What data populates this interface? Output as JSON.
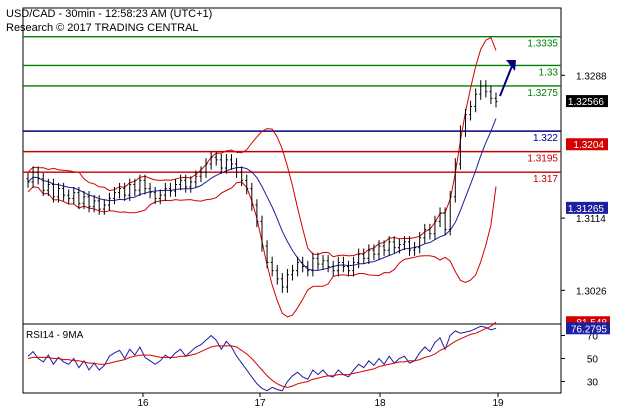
{
  "header": {
    "line1": "USD/CAD - 30min - 12:58:23 AM (UTC+1)",
    "line2": "Research © 2017 TRADING CENTRAL"
  },
  "chart_data": [
    {
      "type": "candlestick",
      "symbol": "USD/CAD",
      "timeframe": "30min",
      "x_labels": [
        "16",
        "17",
        "18",
        "19"
      ],
      "y_ticks": [
        1.3288,
        1.3114,
        1.3026
      ],
      "ylim": [
        1.2985,
        1.337
      ],
      "current_price": "1.32566",
      "levels": [
        {
          "label": "1.3335",
          "value": 1.3335,
          "color": "#008000"
        },
        {
          "label": "1.33",
          "value": 1.33,
          "color": "#008000"
        },
        {
          "label": "1.3275",
          "value": 1.3275,
          "color": "#008000"
        },
        {
          "label": "1.322",
          "value": 1.322,
          "color": "#000080"
        },
        {
          "label": "1.3195",
          "value": 1.3195,
          "color": "#c00000"
        },
        {
          "label": "1.317",
          "value": 1.317,
          "color": "#c00000"
        }
      ],
      "price_badges": [
        {
          "label": "1.32566",
          "value": 1.32566,
          "color": "#000000"
        },
        {
          "label": "1.3204",
          "value": 1.3204,
          "color": "#d40000"
        },
        {
          "label": "1.31265",
          "value": 1.31265,
          "color": "#1e1ea0"
        }
      ],
      "close_series": [
        1.3158,
        1.317,
        1.3162,
        1.3148,
        1.3155,
        1.314,
        1.315,
        1.3142,
        1.3138,
        1.3145,
        1.3132,
        1.314,
        1.3128,
        1.3135,
        1.3125,
        1.313,
        1.3138,
        1.3145,
        1.315,
        1.3142,
        1.3155,
        1.3148,
        1.316,
        1.315,
        1.3145,
        1.3138,
        1.3142,
        1.315,
        1.3147,
        1.3155,
        1.316,
        1.3152,
        1.3158,
        1.3165,
        1.317,
        1.318,
        1.3188,
        1.3185,
        1.3175,
        1.3185,
        1.318,
        1.317,
        1.316,
        1.315,
        1.313,
        1.311,
        1.308,
        1.306,
        1.305,
        1.304,
        1.303,
        1.3045,
        1.305,
        1.306,
        1.3055,
        1.305,
        1.3065,
        1.3058,
        1.3062,
        1.3055,
        1.305,
        1.306,
        1.3055,
        1.305,
        1.306,
        1.307,
        1.3065,
        1.3075,
        1.307,
        1.308,
        1.3075,
        1.3085,
        1.3078,
        1.3082,
        1.3085,
        1.3075,
        1.3078,
        1.309,
        1.31,
        1.3095,
        1.311,
        1.312,
        1.31,
        1.314,
        1.318,
        1.322,
        1.324,
        1.325,
        1.3265,
        1.3275,
        1.3268,
        1.326,
        1.3256
      ],
      "bollinger_bands": true,
      "moving_average": true,
      "title": "USD/CAD - 30min"
    },
    {
      "type": "line",
      "title": "RSI14 - 9MA",
      "y_ticks": [
        70,
        50,
        30
      ],
      "ylim": [
        20,
        80
      ],
      "badges": [
        {
          "label": "81.548",
          "value": 81.548,
          "color": "#d40000"
        },
        {
          "label": "76.2795",
          "value": 76.2795,
          "color": "#1e1ea0"
        }
      ],
      "series": [
        {
          "name": "RSI14",
          "color": "#1e1ea0",
          "values": [
            52,
            56,
            50,
            47,
            53,
            45,
            51,
            47,
            45,
            50,
            42,
            48,
            40,
            46,
            40,
            44,
            52,
            55,
            57,
            50,
            58,
            53,
            60,
            51,
            48,
            45,
            48,
            53,
            50,
            55,
            58,
            52,
            56,
            60,
            62,
            66,
            70,
            66,
            58,
            65,
            60,
            52,
            46,
            40,
            34,
            28,
            24,
            22,
            25,
            23,
            22,
            30,
            35,
            38,
            34,
            32,
            40,
            36,
            40,
            35,
            34,
            40,
            36,
            34,
            40,
            45,
            42,
            48,
            44,
            50,
            45,
            52,
            46,
            50,
            52,
            46,
            48,
            55,
            60,
            56,
            64,
            68,
            58,
            70,
            74,
            72,
            73,
            74,
            76,
            78,
            77,
            75,
            76.28
          ]
        },
        {
          "name": "9MA",
          "color": "#d40000",
          "values": [
            50,
            51,
            51,
            51,
            51,
            50,
            50,
            49,
            49,
            48,
            48,
            47,
            46,
            46,
            45,
            45,
            46,
            47,
            48,
            49,
            51,
            52,
            53,
            53,
            53,
            52,
            51,
            51,
            51,
            51,
            52,
            52,
            53,
            54,
            56,
            58,
            60,
            61,
            61,
            61,
            61,
            60,
            57,
            54,
            50,
            45,
            40,
            35,
            31,
            28,
            26,
            25,
            26,
            28,
            29,
            30,
            32,
            33,
            34,
            35,
            35,
            36,
            36,
            36,
            37,
            38,
            39,
            40,
            41,
            43,
            44,
            45,
            46,
            47,
            47,
            48,
            48,
            49,
            51,
            52,
            54,
            57,
            59,
            62,
            65,
            67,
            69,
            71,
            72,
            74,
            76,
            78,
            81.55
          ]
        }
      ]
    }
  ],
  "colors": {
    "green_level": "#008000",
    "blue_level": "#000080",
    "red_level": "#c00000",
    "candle": "#000000",
    "ma": "#1e1ea0",
    "band": "#d40000"
  }
}
